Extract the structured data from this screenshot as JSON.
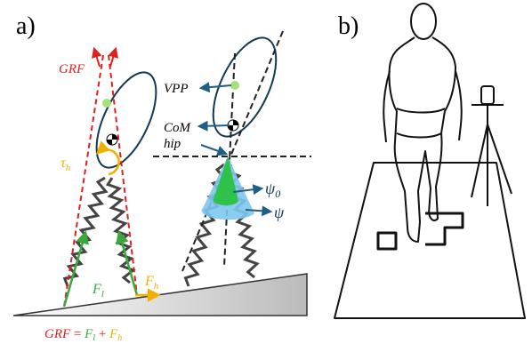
{
  "panel_a": {
    "label": "a)",
    "grf": "GRF",
    "vpp": "VPP",
    "com": "CoM",
    "hip": "hip",
    "tau": {
      "symbol": "τ",
      "subscript": "h"
    },
    "psi0": {
      "symbol": "ψ",
      "subscript": "0"
    },
    "psi": "ψ",
    "f_l": {
      "symbol": "F",
      "subscript": "l"
    },
    "f_h": {
      "symbol": "F",
      "subscript": "h"
    },
    "equation": {
      "lhs": "GRF",
      "equals": "=",
      "term1": {
        "symbol": "F",
        "subscript": "l"
      },
      "plus": "+",
      "term2": {
        "symbol": "F",
        "subscript": "h"
      }
    }
  },
  "panel_b": {
    "label": "b)"
  }
}
